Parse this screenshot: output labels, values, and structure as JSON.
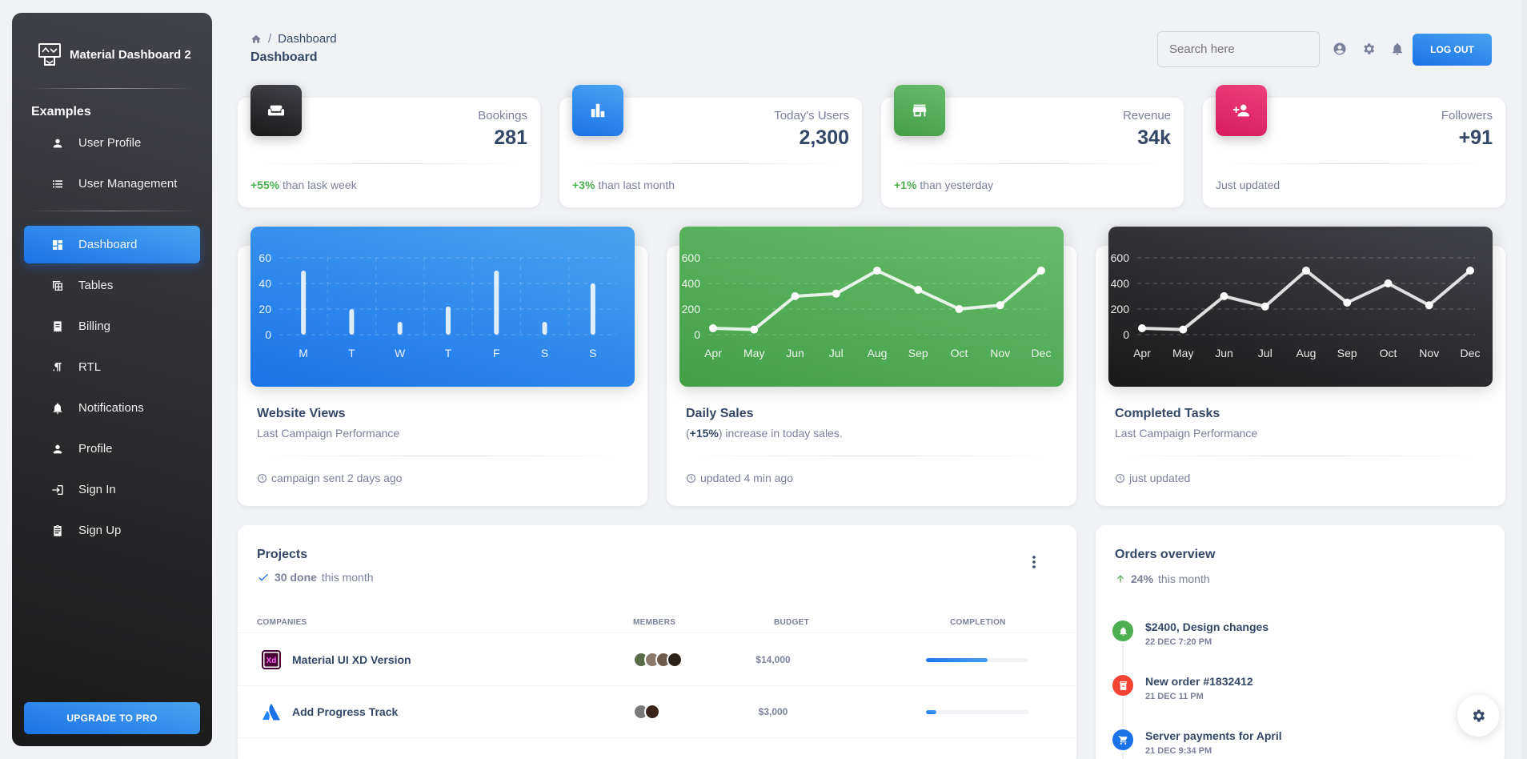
{
  "brand": {
    "name": "Material Dashboard 2"
  },
  "sidebar": {
    "section_title": "Examples",
    "examples": [
      {
        "label": "User Profile",
        "icon": "person-icon"
      },
      {
        "label": "User Management",
        "icon": "list-icon"
      }
    ],
    "items": [
      {
        "label": "Dashboard",
        "icon": "dashboard-icon",
        "active": true
      },
      {
        "label": "Tables",
        "icon": "table-icon"
      },
      {
        "label": "Billing",
        "icon": "receipt-icon"
      },
      {
        "label": "RTL",
        "icon": "rtl-icon"
      },
      {
        "label": "Notifications",
        "icon": "bell-icon"
      },
      {
        "label": "Profile",
        "icon": "person-icon"
      },
      {
        "label": "Sign In",
        "icon": "login-icon"
      },
      {
        "label": "Sign Up",
        "icon": "assignment-icon"
      }
    ],
    "upgrade_label": "UPGRADE TO PRO"
  },
  "header": {
    "breadcrumb": [
      "Dashboard"
    ],
    "title": "Dashboard",
    "search_placeholder": "Search here",
    "logout_label": "LOG OUT"
  },
  "stats": [
    {
      "label": "Bookings",
      "value": "281",
      "change": "+55%",
      "change_text": "than lask week",
      "icon": "weekend-icon",
      "color": "#191919"
    },
    {
      "label": "Today's Users",
      "value": "2,300",
      "change": "+3%",
      "change_text": "than last month",
      "icon": "leaderboard-icon",
      "color": "#1A73E8"
    },
    {
      "label": "Revenue",
      "value": "34k",
      "change": "+1%",
      "change_text": "than yesterday",
      "icon": "store-icon",
      "color": "#43A047"
    },
    {
      "label": "Followers",
      "value": "+91",
      "change": "",
      "change_text": "Just updated",
      "icon": "person-add-icon",
      "color": "#EC407A"
    }
  ],
  "charts": [
    {
      "title": "Website Views",
      "subtitle": "Last Campaign Performance",
      "footer": "campaign sent 2 days ago"
    },
    {
      "title": "Daily Sales",
      "subtitle_prefix": "(",
      "subtitle_bold": "+15%",
      "subtitle_suffix": ") increase in today sales.",
      "footer": "updated 4 min ago"
    },
    {
      "title": "Completed Tasks",
      "subtitle": "Last Campaign Performance",
      "footer": "just updated"
    }
  ],
  "chart_data": [
    {
      "type": "bar",
      "categories": [
        "M",
        "T",
        "W",
        "T",
        "F",
        "S",
        "S"
      ],
      "values": [
        50,
        20,
        10,
        22,
        50,
        10,
        40
      ],
      "ylim": [
        0,
        60
      ],
      "yticks": [
        0,
        20,
        40,
        60
      ],
      "color": "#1A73E8"
    },
    {
      "type": "line",
      "categories": [
        "Apr",
        "May",
        "Jun",
        "Jul",
        "Aug",
        "Sep",
        "Oct",
        "Nov",
        "Dec"
      ],
      "values": [
        50,
        40,
        300,
        320,
        500,
        350,
        200,
        230,
        500
      ],
      "ylim": [
        0,
        600
      ],
      "yticks": [
        0,
        200,
        400,
        600
      ],
      "color": "#43A047"
    },
    {
      "type": "line",
      "categories": [
        "Apr",
        "May",
        "Jun",
        "Jul",
        "Aug",
        "Sep",
        "Oct",
        "Nov",
        "Dec"
      ],
      "values": [
        50,
        40,
        300,
        220,
        500,
        250,
        400,
        230,
        500
      ],
      "ylim": [
        0,
        600
      ],
      "yticks": [
        0,
        200,
        400,
        600
      ],
      "color": "#191919"
    }
  ],
  "projects": {
    "title": "Projects",
    "done_count": "30 done",
    "done_suffix": "this month",
    "columns": [
      "COMPANIES",
      "MEMBERS",
      "BUDGET",
      "COMPLETION"
    ],
    "rows": [
      {
        "name": "Material UI XD Version",
        "logo": "xd-logo",
        "members": 4,
        "budget": "$14,000",
        "completion": 0.6
      },
      {
        "name": "Add Progress Track",
        "logo": "atlassian-logo",
        "members": 2,
        "budget": "$3,000",
        "completion": 0.1
      }
    ]
  },
  "orders": {
    "title": "Orders overview",
    "percent": "24%",
    "suffix": "this month",
    "items": [
      {
        "title": "$2400, Design changes",
        "date": "22 DEC 7:20 PM",
        "icon": "bell-icon",
        "color": "#4CAF50"
      },
      {
        "title": "New order #1832412",
        "date": "21 DEC 11 PM",
        "icon": "inventory-icon",
        "color": "#F44335"
      },
      {
        "title": "Server payments for April",
        "date": "21 DEC 9:34 PM",
        "icon": "cart-icon",
        "color": "#1A73E8"
      }
    ]
  }
}
